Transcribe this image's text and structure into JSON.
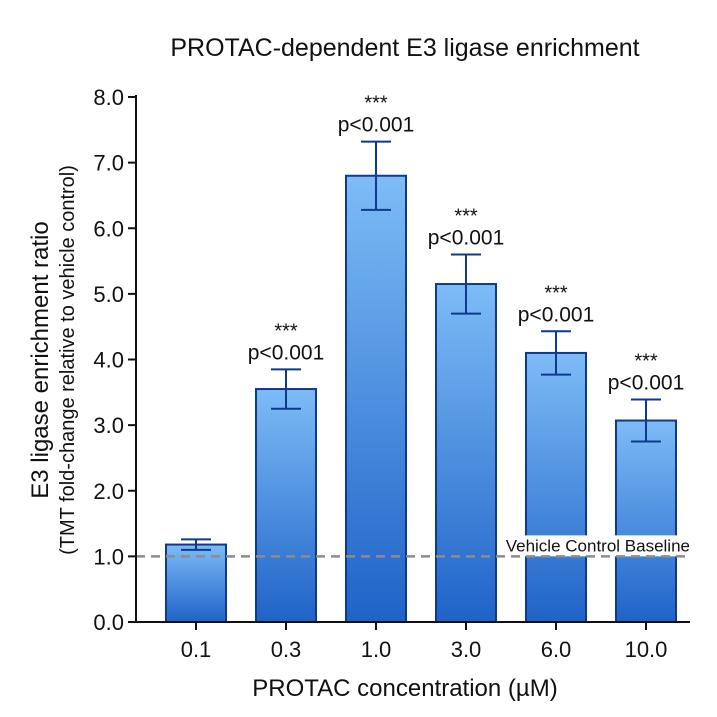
{
  "chart_data": {
    "type": "bar",
    "title": "PROTAC-dependent E3 ligase enrichment",
    "xlabel": "PROTAC concentration (µM)",
    "ylabel": "E3 ligase enrichment ratio",
    "ylabel2": "(TMT fold-change relative to vehicle control)",
    "categories": [
      "0.1",
      "0.3",
      "1.0",
      "3.0",
      "6.0",
      "10.0"
    ],
    "values": [
      1.18,
      3.55,
      6.8,
      5.15,
      4.1,
      3.07
    ],
    "errors": [
      0.08,
      0.3,
      0.52,
      0.45,
      0.33,
      0.32
    ],
    "annotations": [
      null,
      {
        "stars": "***",
        "p": "p<0.001"
      },
      {
        "stars": "***",
        "p": "p<0.001"
      },
      {
        "stars": "***",
        "p": "p<0.001"
      },
      {
        "stars": "***",
        "p": "p<0.001"
      },
      {
        "stars": "***",
        "p": "p<0.001"
      }
    ],
    "ylim": [
      0,
      8
    ],
    "yticks": [
      "0.0",
      "1.0",
      "2.0",
      "3.0",
      "4.0",
      "5.0",
      "6.0",
      "7.0",
      "8.0"
    ],
    "baseline": {
      "value": 1.0,
      "label": "Vehicle Control Baseline",
      "color": "#8c8c8c"
    },
    "grid": false,
    "colors": {
      "bar_top": "#7dbcf6",
      "bar_bottom": "#1f63c8",
      "bar_edge": "#0f3a8c",
      "axis": "#111111"
    }
  }
}
